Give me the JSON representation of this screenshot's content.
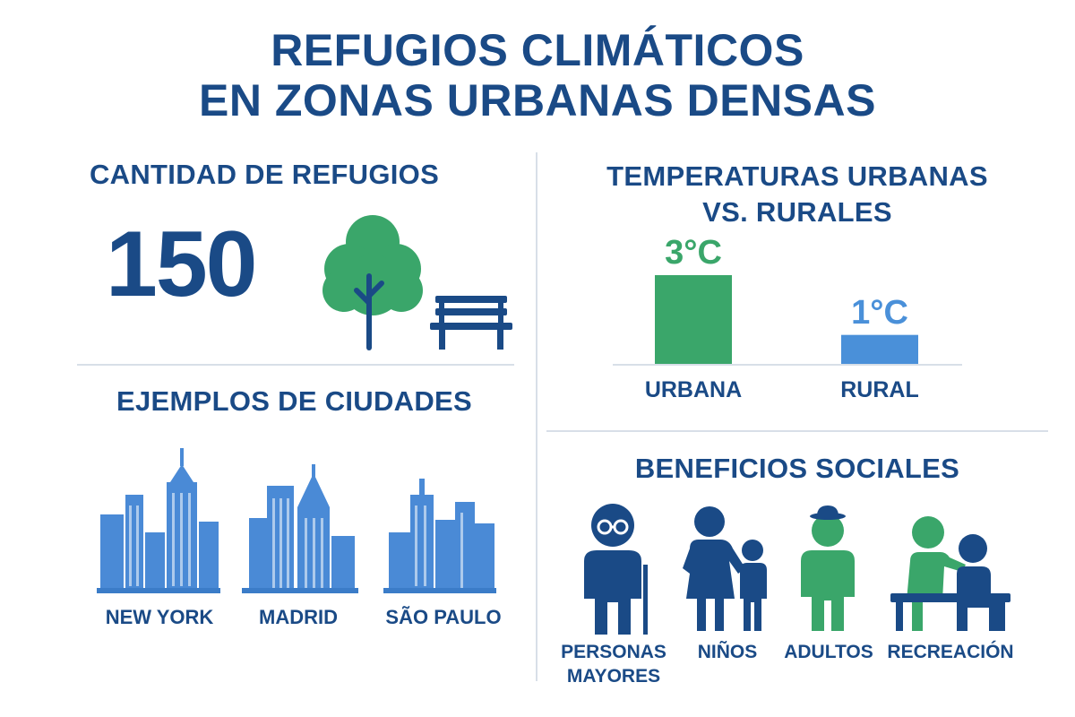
{
  "title": {
    "line1": "REFUGIOS CLIMÁTICOS",
    "line2": "EN ZONAS URBANAS DENSAS"
  },
  "refugios": {
    "heading": "CANTIDAD DE REFUGIOS",
    "count": "150",
    "icons": [
      "tree-icon",
      "bench-icon"
    ]
  },
  "ciudades": {
    "heading": "EJEMPLOS DE CIUDADES",
    "items": [
      {
        "name": "NEW YORK",
        "icon": "skyline-icon"
      },
      {
        "name": "MADRID",
        "icon": "skyline-icon"
      },
      {
        "name": "SÃO PAULO",
        "icon": "skyline-icon"
      }
    ]
  },
  "temperaturas": {
    "heading_line1": "TEMPERATURAS URBANAS",
    "heading_line2": "VS. RURALES"
  },
  "chart_data": {
    "type": "bar",
    "categories": [
      "URBANA",
      "RURAL"
    ],
    "values": [
      3,
      1
    ],
    "value_labels": [
      "3°C",
      "1°C"
    ],
    "colors": [
      "#3aa66a",
      "#4a90d9"
    ],
    "ylim": [
      0,
      3.3
    ],
    "grid": false,
    "legend": "none"
  },
  "beneficios": {
    "heading": "BENEFICIOS SOCIALES",
    "items": [
      {
        "label_line1": "PERSONAS",
        "label_line2": "MAYORES",
        "icon": "elderly-person-icon"
      },
      {
        "label_line1": "NIÑOS",
        "label_line2": "",
        "icon": "parent-child-icon"
      },
      {
        "label_line1": "ADULTOS",
        "label_line2": "",
        "icon": "adult-person-icon"
      },
      {
        "label_line1": "RECREACIÓN",
        "label_line2": "",
        "icon": "people-on-bench-icon"
      }
    ]
  },
  "colors": {
    "navy": "#1a4a86",
    "green": "#3aa66a",
    "blue": "#4a90d9",
    "divider": "#d8dfe8"
  }
}
